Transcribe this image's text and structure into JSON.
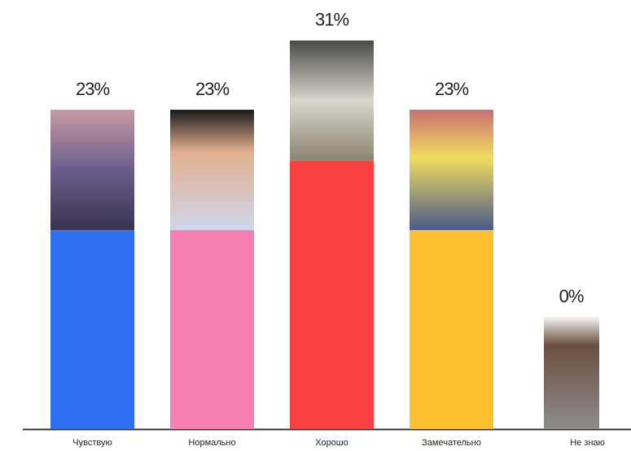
{
  "chart_data": {
    "type": "bar",
    "categories": [
      "Чувствую",
      "Нормально",
      "Хорошо",
      "Замечательно",
      "Не знаю"
    ],
    "values": [
      23,
      23,
      31,
      23,
      0
    ],
    "value_labels": [
      "23%",
      "23%",
      "31%",
      "23%",
      "0%"
    ],
    "colors": [
      "#2f6ff2",
      "#f77fb1",
      "#fa4141",
      "#fbbf2f",
      "#9a9a9a"
    ]
  }
}
